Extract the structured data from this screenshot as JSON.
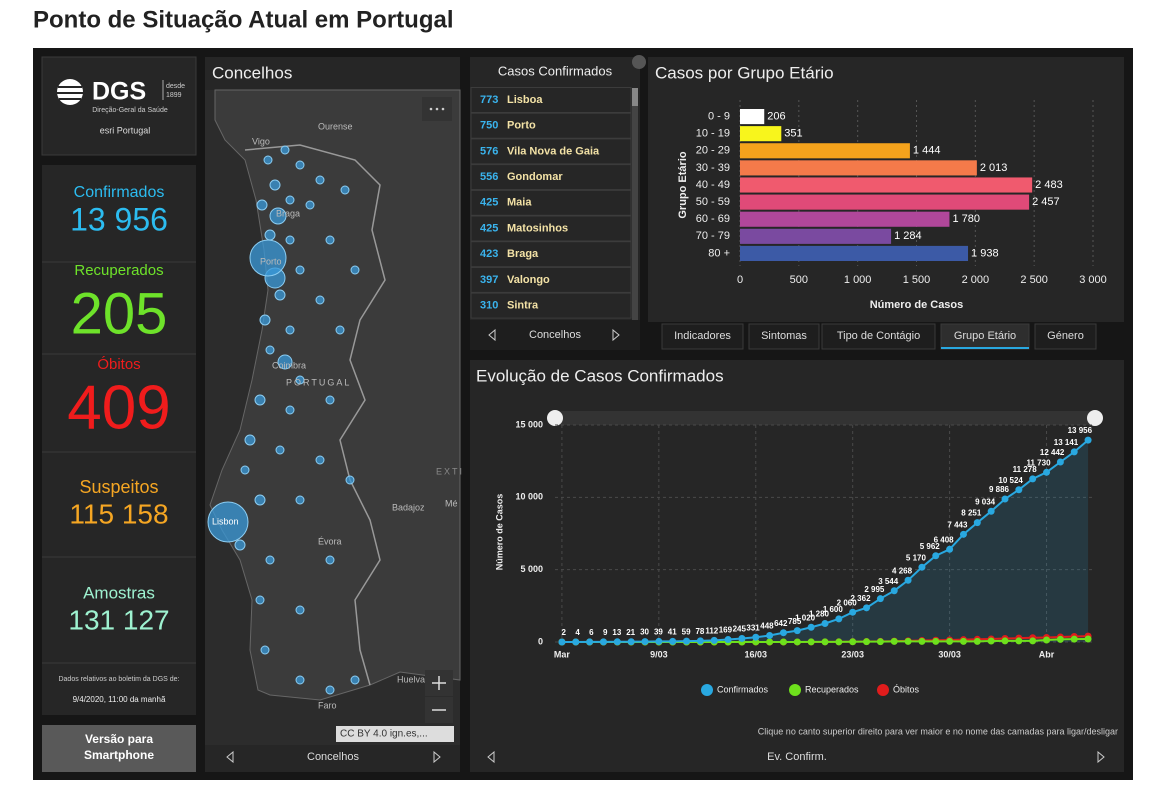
{
  "header": {
    "title": "Ponto de Situação Atual em Portugal"
  },
  "logo": {
    "name": "DGS",
    "since": "desde",
    "year": "1899",
    "org": "Direção-Geral da Saúde",
    "partner": "esri Portugal"
  },
  "stats": [
    {
      "label": "Confirmados",
      "value": "13 956",
      "color": "#2cbcf0"
    },
    {
      "label": "Recuperados",
      "value": "205",
      "color": "#6ee22a"
    },
    {
      "label": "Óbitos",
      "value": "409",
      "color": "#f01c1c"
    },
    {
      "label": "Suspeitos",
      "value": "115 158",
      "color": "#f5a623"
    },
    {
      "label": "Amostras",
      "value": "131 127",
      "color": "#9ef2d0"
    }
  ],
  "note": {
    "text": "Dados relativos ao boletim da DGS de:",
    "date": "9/4/2020, 11:00 da manhã"
  },
  "button": {
    "lines": [
      "Versão para",
      "Smartphone"
    ]
  },
  "map": {
    "title": "Concelhos",
    "labels": [
      "Ourense",
      "Vigo",
      "Braga",
      "Porto",
      "Coimbra",
      "PORTUGAL",
      "Lisbon",
      "Évora",
      "Badajoz",
      "Huelva",
      "Faro",
      "EXTI",
      "Mé"
    ],
    "attribution": "CC BY 4.0 ign.es,...",
    "footer": "Concelhos"
  },
  "list": {
    "title": "Casos Confirmados",
    "items": [
      {
        "count": 773,
        "name": "Lisboa"
      },
      {
        "count": 750,
        "name": "Porto"
      },
      {
        "count": 576,
        "name": "Vila Nova de Gaia"
      },
      {
        "count": 556,
        "name": "Gondomar"
      },
      {
        "count": 425,
        "name": "Maia"
      },
      {
        "count": 425,
        "name": "Matosinhos"
      },
      {
        "count": 423,
        "name": "Braga"
      },
      {
        "count": 397,
        "name": "Valongo"
      },
      {
        "count": 310,
        "name": "Sintra"
      }
    ],
    "footer": "Concelhos"
  },
  "tabs": {
    "items": [
      "Indicadores",
      "Sintomas",
      "Tipo de Contágio",
      "Grupo Etário",
      "Género"
    ],
    "active": 3
  },
  "chart_data": [
    {
      "type": "bar",
      "orientation": "horizontal",
      "title": "Casos por Grupo Etário",
      "xlabel": "Número de Casos",
      "ylabel": "Grupo Etário",
      "categories": [
        "0 - 9",
        "10 - 19",
        "20 - 29",
        "30 - 39",
        "40 - 49",
        "50 - 59",
        "60 - 69",
        "70 - 79",
        "80 +"
      ],
      "values": [
        206,
        351,
        1444,
        2013,
        2483,
        2457,
        1780,
        1284,
        1938
      ],
      "value_labels": [
        "206",
        "351",
        "1 444",
        "2 013",
        "2 483",
        "2 457",
        "1 780",
        "1 284",
        "1 938"
      ],
      "colors": [
        "#ffffff",
        "#f8f51c",
        "#f5a31c",
        "#f47a4a",
        "#f05a6e",
        "#e04a78",
        "#b0479a",
        "#7a4aa0",
        "#3c5aa6"
      ],
      "xlim": [
        0,
        3000
      ],
      "xticks": [
        0,
        500,
        {
          "value": 1000,
          "label": "1 000"
        },
        {
          "value": 1500,
          "label": "1 500"
        },
        {
          "value": 2000,
          "label": "2 000"
        },
        {
          "value": 2500,
          "label": "2 500"
        },
        {
          "value": 3000,
          "label": "3 000"
        }
      ],
      "grid": true
    },
    {
      "type": "line",
      "title": "Evolução de Casos Confirmados",
      "ylabel": "Número de Casos",
      "x": [
        2,
        3,
        4,
        5,
        6,
        7,
        8,
        9,
        10,
        11,
        12,
        13,
        14,
        15,
        16,
        17,
        18,
        19,
        20,
        21,
        22,
        23,
        24,
        25,
        26,
        27,
        28,
        29,
        30,
        31,
        32,
        33,
        34,
        35,
        36,
        37,
        38,
        39,
        40
      ],
      "xlim": [
        1.5,
        40.5
      ],
      "xticks": [
        {
          "value": 2,
          "label": "Mar"
        },
        {
          "value": 9,
          "label": "9/03"
        },
        {
          "value": 16,
          "label": "16/03"
        },
        {
          "value": 23,
          "label": "23/03"
        },
        {
          "value": 30,
          "label": "30/03"
        },
        {
          "value": 37,
          "label": "Abr"
        }
      ],
      "ylim": [
        0,
        15000
      ],
      "yticks": [
        0,
        {
          "value": 5000,
          "label": "5 000"
        },
        {
          "value": 10000,
          "label": "10 000"
        },
        {
          "value": 15000,
          "label": "15 000"
        }
      ],
      "grid": true,
      "series": [
        {
          "name": "Confirmados",
          "color": "#29a8e0",
          "values": [
            2,
            4,
            6,
            9,
            13,
            21,
            30,
            39,
            41,
            59,
            78,
            112,
            169,
            245,
            331,
            448,
            642,
            785,
            1020,
            1280,
            1600,
            2060,
            2362,
            2995,
            3544,
            4268,
            5170,
            5962,
            6408,
            7443,
            8251,
            9034,
            9886,
            10524,
            11278,
            11730,
            12442,
            13141,
            13956
          ],
          "value_labels": [
            "2",
            "4",
            "6",
            "9",
            "13",
            "21",
            "30",
            "39",
            "41",
            "59",
            "78",
            "112",
            "169",
            "245",
            "331",
            "448",
            "642",
            "785",
            "1 020",
            "1 280",
            "1 600",
            "2 060",
            "2 362",
            "2 995",
            "3 544",
            "4 268",
            "5 170",
            "5 962",
            "6 408",
            "7 443",
            "8 251",
            "9 034",
            "9 886",
            "10 524",
            "11 278",
            "11 730",
            "12 442",
            "13 141",
            "13 956"
          ]
        },
        {
          "name": "Recuperados",
          "color": "#6ee01c",
          "values": [
            0,
            0,
            0,
            0,
            0,
            0,
            0,
            0,
            0,
            0,
            0,
            0,
            0,
            0,
            3,
            3,
            3,
            3,
            5,
            5,
            5,
            14,
            22,
            22,
            43,
            43,
            43,
            43,
            43,
            43,
            43,
            68,
            75,
            75,
            75,
            140,
            184,
            196,
            205
          ]
        },
        {
          "name": "Óbitos",
          "color": "#e01c1c",
          "values": [
            0,
            0,
            0,
            0,
            0,
            0,
            0,
            0,
            0,
            0,
            0,
            0,
            0,
            0,
            1,
            1,
            2,
            3,
            6,
            12,
            14,
            23,
            33,
            43,
            60,
            76,
            100,
            119,
            140,
            160,
            187,
            209,
            246,
            266,
            295,
            311,
            345,
            380,
            409
          ]
        }
      ],
      "note": "Clique no canto superior direito para ver maior e no nome das camadas para ligar/desligar",
      "footer": "Ev. Confirm."
    }
  ]
}
